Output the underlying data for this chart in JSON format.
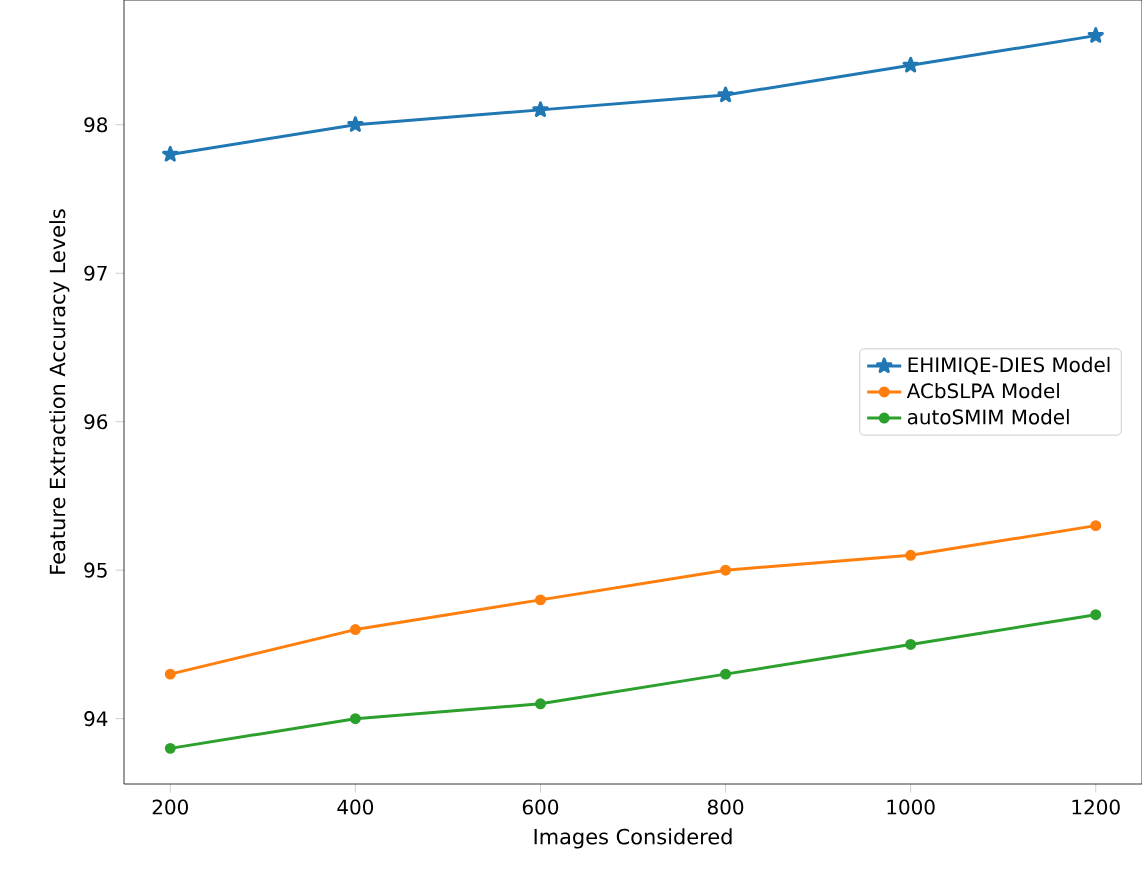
{
  "chart_data": {
    "type": "line",
    "xlabel": "Images Considered",
    "ylabel": "Feature Extraction Accuracy Levels",
    "x": [
      200,
      400,
      600,
      800,
      1000,
      1200
    ],
    "series": [
      {
        "name": "EHIMIQE-DIES Model",
        "color": "#1f77b4",
        "marker": "star",
        "values": [
          97.8,
          98.0,
          98.1,
          98.2,
          98.4,
          98.6
        ]
      },
      {
        "name": "ACbSLPA Model",
        "color": "#ff7f0e",
        "marker": "circle",
        "values": [
          94.3,
          94.6,
          94.8,
          95.0,
          95.1,
          95.3
        ]
      },
      {
        "name": "autoSMIM Model",
        "color": "#2ca02c",
        "marker": "circle",
        "values": [
          93.8,
          94.0,
          94.1,
          94.3,
          94.5,
          94.7
        ]
      }
    ],
    "xlim": [
      150,
      1250
    ],
    "ylim": [
      93.56,
      98.84
    ],
    "xticks": [
      200,
      400,
      600,
      800,
      1000,
      1200
    ],
    "yticks": [
      94,
      95,
      96,
      97,
      98
    ],
    "legend": "center right",
    "grid": false,
    "line_style": "solid"
  }
}
